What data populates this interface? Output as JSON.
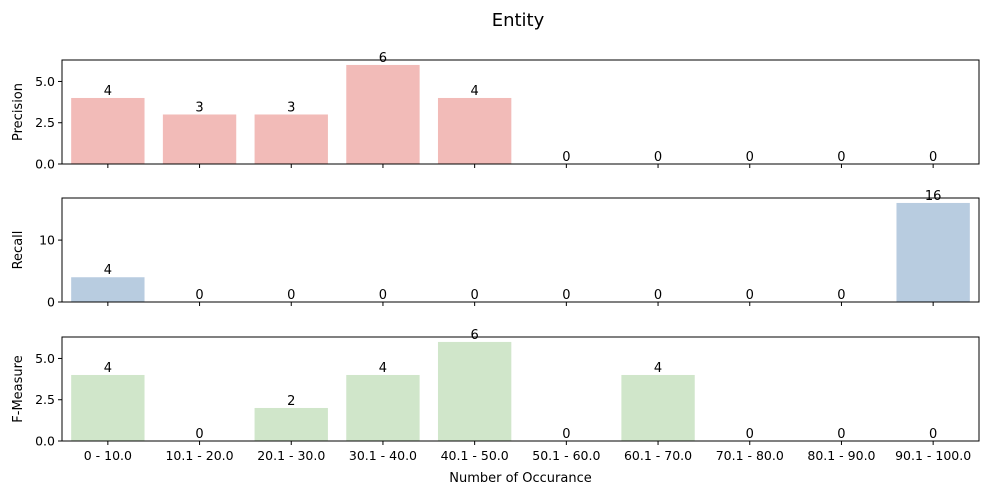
{
  "title": "Entity",
  "chart_data": [
    {
      "type": "bar",
      "ylabel": "Precision",
      "xlabel": "",
      "categories": [
        "0 - 10.0",
        "10.1 - 20.0",
        "20.1 - 30.0",
        "30.1 - 40.0",
        "40.1 - 50.0",
        "50.1 - 60.0",
        "60.1 - 70.0",
        "70.1 - 80.0",
        "80.1 - 90.0",
        "90.1 - 100.0"
      ],
      "values": [
        4,
        3,
        3,
        6,
        4,
        0,
        0,
        0,
        0,
        0
      ],
      "ylim": [
        0,
        6.3
      ],
      "yticks": [
        "0.0",
        "2.5",
        "5.0"
      ],
      "ytick_values": [
        0,
        2.5,
        5
      ],
      "color": "#f2bbb8",
      "show_xticklabels": false
    },
    {
      "type": "bar",
      "ylabel": "Recall",
      "xlabel": "",
      "categories": [
        "0 - 10.0",
        "10.1 - 20.0",
        "20.1 - 30.0",
        "30.1 - 40.0",
        "40.1 - 50.0",
        "50.1 - 60.0",
        "60.1 - 70.0",
        "70.1 - 80.0",
        "80.1 - 90.0",
        "90.1 - 100.0"
      ],
      "values": [
        4,
        0,
        0,
        0,
        0,
        0,
        0,
        0,
        0,
        16
      ],
      "ylim": [
        0,
        16.8
      ],
      "yticks": [
        "0",
        "10"
      ],
      "ytick_values": [
        0,
        10
      ],
      "color": "#b8cce0",
      "show_xticklabels": false
    },
    {
      "type": "bar",
      "ylabel": "F-Measure",
      "xlabel": "Number of Occurance",
      "categories": [
        "0 - 10.0",
        "10.1 - 20.0",
        "20.1 - 30.0",
        "30.1 - 40.0",
        "40.1 - 50.0",
        "50.1 - 60.0",
        "60.1 - 70.0",
        "70.1 - 80.0",
        "80.1 - 90.0",
        "90.1 - 100.0"
      ],
      "values": [
        4,
        0,
        2,
        4,
        6,
        0,
        4,
        0,
        0,
        0
      ],
      "ylim": [
        0,
        6.3
      ],
      "yticks": [
        "0.0",
        "2.5",
        "5.0"
      ],
      "ytick_values": [
        0,
        2.5,
        5
      ],
      "color": "#d0e6ca",
      "show_xticklabels": true
    }
  ]
}
